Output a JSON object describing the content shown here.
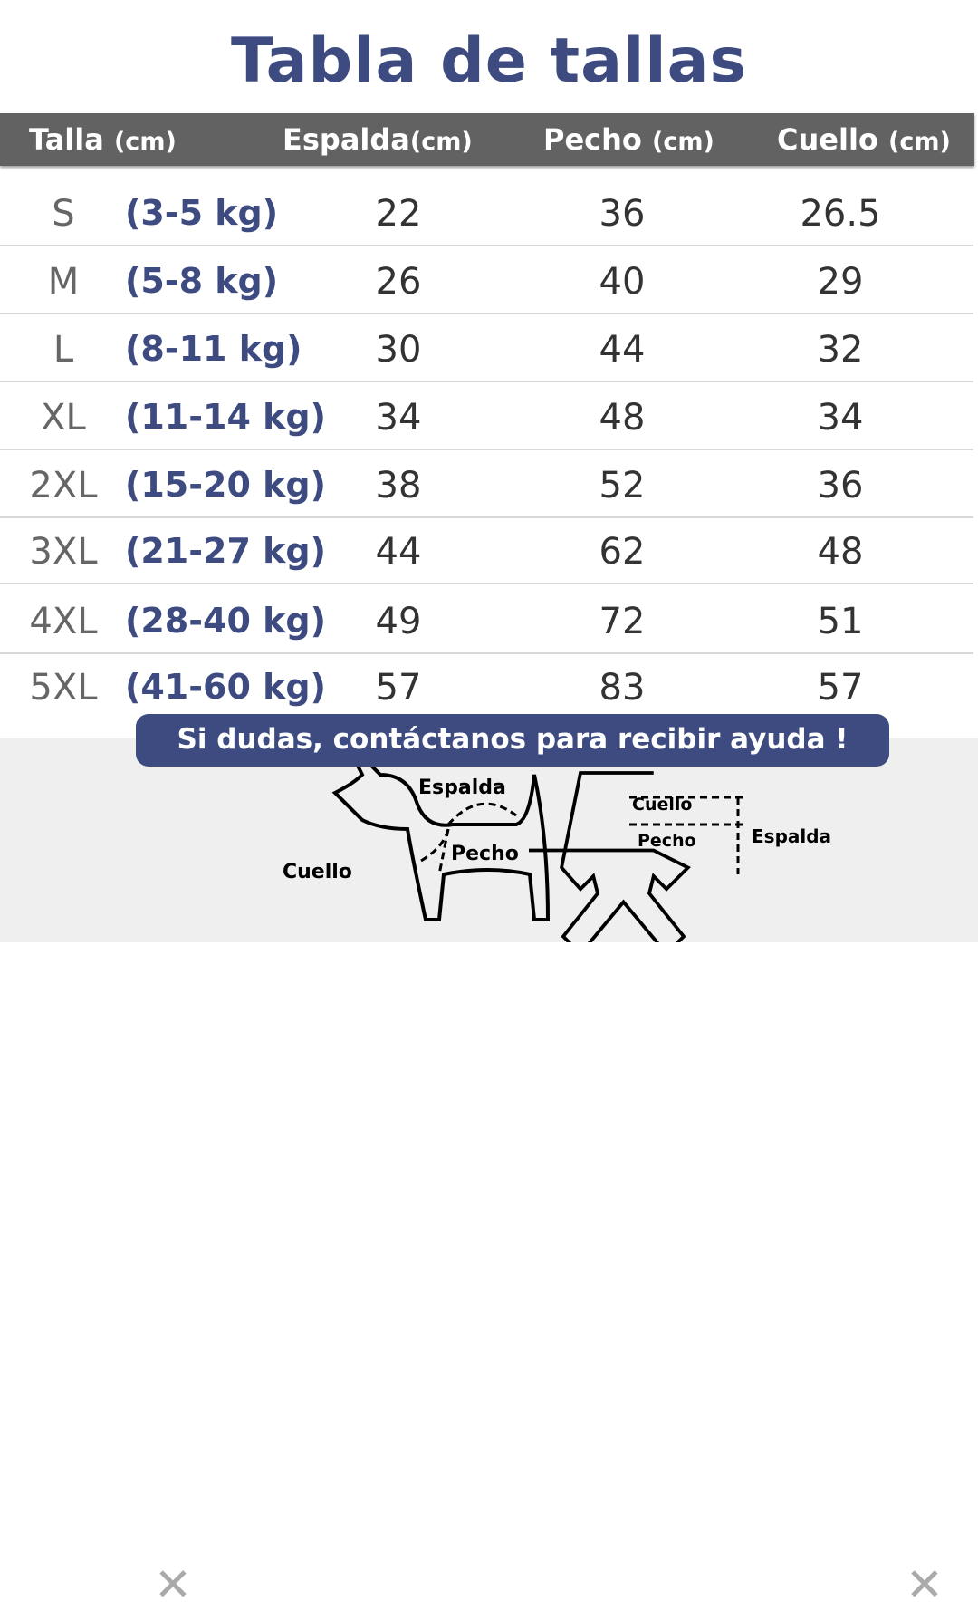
{
  "title": "Tabla de tallas",
  "headers": [
    {
      "label": "Talla",
      "unit": "(cm)"
    },
    {
      "label": "Espalda",
      "unit": "(cm)"
    },
    {
      "label": "Pecho",
      "unit": "(cm)"
    },
    {
      "label": "Cuello",
      "unit": "(cm)"
    }
  ],
  "rows": [
    {
      "size": "S",
      "weight": "(3-5 kg)",
      "espalda": "22",
      "pecho": "36",
      "cuello": "26.5"
    },
    {
      "size": "M",
      "weight": "(5-8 kg)",
      "espalda": "26",
      "pecho": "40",
      "cuello": "29"
    },
    {
      "size": "L",
      "weight": "(8-11 kg)",
      "espalda": "30",
      "pecho": "44",
      "cuello": "32"
    },
    {
      "size": "XL",
      "weight": "(11-14 kg)",
      "espalda": "34",
      "pecho": "48",
      "cuello": "34"
    },
    {
      "size": "2XL",
      "weight": "(15-20 kg)",
      "espalda": "38",
      "pecho": "52",
      "cuello": "36"
    },
    {
      "size": "3XL",
      "weight": "(21-27 kg)",
      "espalda": "44",
      "pecho": "62",
      "cuello": "48"
    },
    {
      "size": "4XL",
      "weight": "(28-40 kg)",
      "espalda": "49",
      "pecho": "72",
      "cuello": "51"
    },
    {
      "size": "5XL",
      "weight": "(41-60 kg)",
      "espalda": "57",
      "pecho": "83",
      "cuello": "57"
    }
  ],
  "help_banner": "Si dudas, contáctanos para recibir ayuda !",
  "diagram": {
    "dog": {
      "espalda": "Espalda",
      "pecho": "Pecho",
      "cuello": "Cuello"
    },
    "garment": {
      "cuello": "Cuello",
      "pecho": "Pecho",
      "espalda": "Espalda"
    }
  },
  "colors": {
    "accent": "#3d4b80",
    "header_bg": "#626262"
  }
}
